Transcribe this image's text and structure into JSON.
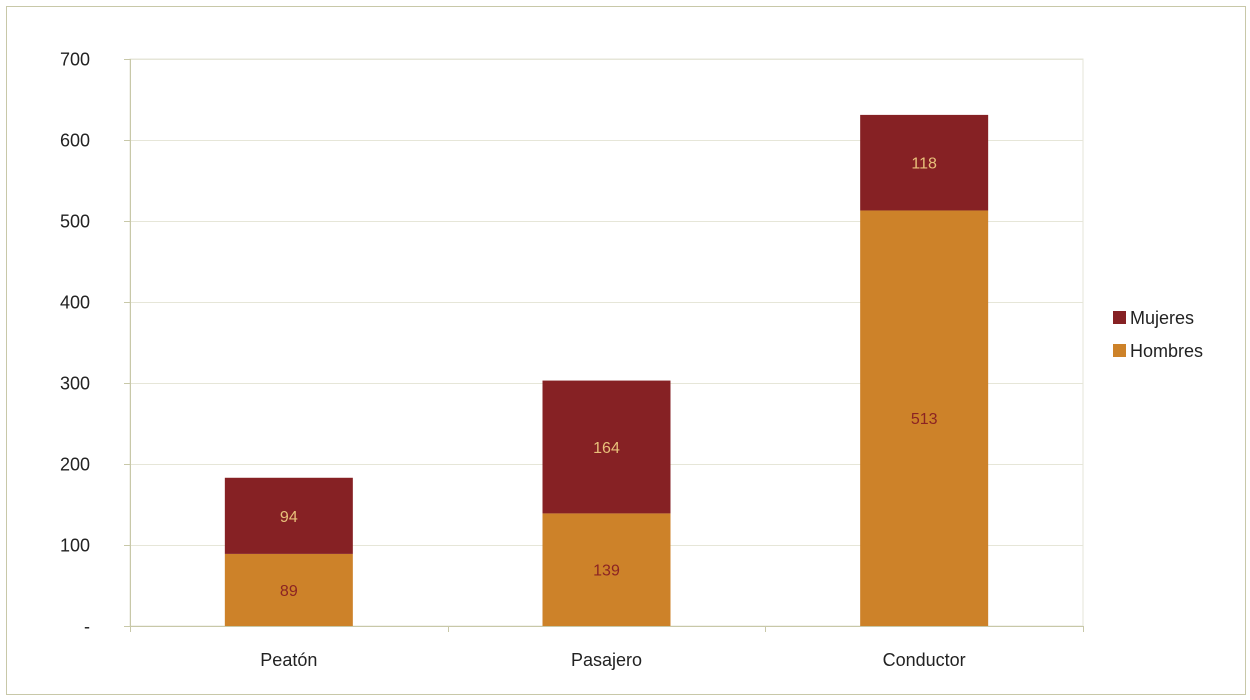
{
  "chart_data": {
    "type": "bar",
    "stacked": true,
    "title": "",
    "xlabel": "",
    "ylabel": "",
    "categories": [
      "Peatón",
      "Pasajero",
      "Conductor"
    ],
    "series": [
      {
        "name": "Hombres",
        "values": [
          89,
          139,
          513
        ],
        "color": "#cd8229",
        "label_color": "#8b2323"
      },
      {
        "name": "Mujeres",
        "values": [
          94,
          164,
          118
        ],
        "color": "#862124",
        "label_color": "#e8c07a"
      }
    ],
    "ylim": [
      0,
      700
    ],
    "yticks": [
      0,
      100,
      200,
      300,
      400,
      500,
      600,
      700
    ],
    "ytick_labels": [
      "-",
      "100",
      "200",
      "300",
      "400",
      "500",
      "600",
      "700"
    ],
    "grid": true,
    "grid_color": "#e6e6d8",
    "axis_color": "#c8c8a8",
    "legend_position": "right",
    "legend_order": [
      "Mujeres",
      "Hombres"
    ]
  }
}
